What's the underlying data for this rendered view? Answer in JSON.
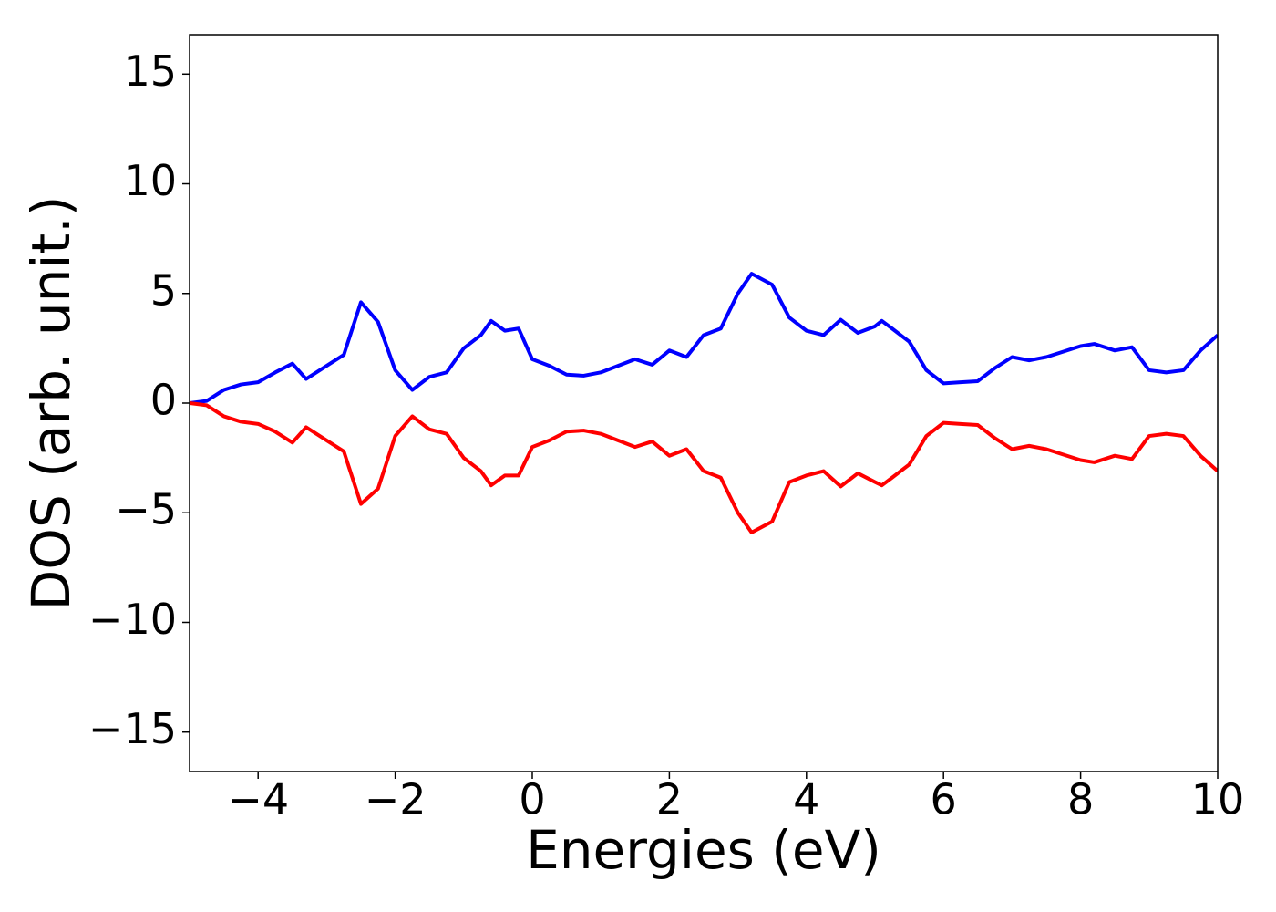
{
  "chart_data": {
    "type": "line",
    "xlabel": "Energies (eV)",
    "ylabel": "DOS (arb. unit.)",
    "x": [
      -5,
      -4.75,
      -4.5,
      -4.25,
      -4,
      -3.75,
      -3.5,
      -3.3,
      -3,
      -2.75,
      -2.5,
      -2.25,
      -2,
      -1.75,
      -1.5,
      -1.25,
      -1,
      -0.75,
      -0.6,
      -0.4,
      -0.2,
      0,
      0.25,
      0.5,
      0.75,
      1,
      1.25,
      1.5,
      1.75,
      2,
      2.25,
      2.5,
      2.75,
      3,
      3.2,
      3.5,
      3.75,
      4,
      4.25,
      4.5,
      4.75,
      5,
      5.1,
      5.25,
      5.5,
      5.75,
      6,
      6.25,
      6.5,
      6.75,
      7,
      7.25,
      7.5,
      7.75,
      8,
      8.2,
      8.5,
      8.75,
      9,
      9.25,
      9.5,
      9.75,
      10
    ],
    "series": [
      {
        "color": "#0000ff",
        "values": [
          0,
          0.1,
          0.6,
          0.85,
          0.95,
          1.4,
          1.8,
          1.1,
          1.7,
          2.2,
          4.6,
          3.7,
          1.5,
          0.6,
          1.2,
          1.4,
          2.5,
          3.1,
          3.75,
          3.3,
          3.4,
          2.0,
          1.7,
          1.3,
          1.25,
          1.4,
          1.7,
          2.0,
          1.75,
          2.4,
          2.1,
          3.1,
          3.4,
          5.0,
          5.9,
          5.4,
          3.9,
          3.3,
          3.1,
          3.8,
          3.2,
          3.5,
          3.75,
          3.4,
          2.8,
          1.5,
          0.9,
          0.95,
          1.0,
          1.6,
          2.1,
          1.95,
          2.1,
          2.35,
          2.6,
          2.7,
          2.4,
          2.55,
          1.5,
          1.4,
          1.5,
          2.4,
          3.1
        ]
      },
      {
        "color": "#ff0000",
        "values": [
          0,
          -0.1,
          -0.6,
          -0.85,
          -0.95,
          -1.3,
          -1.8,
          -1.1,
          -1.7,
          -2.2,
          -4.6,
          -3.9,
          -1.5,
          -0.6,
          -1.2,
          -1.4,
          -2.5,
          -3.1,
          -3.75,
          -3.3,
          -3.3,
          -2.0,
          -1.7,
          -1.3,
          -1.25,
          -1.4,
          -1.7,
          -2.0,
          -1.75,
          -2.4,
          -2.1,
          -3.1,
          -3.4,
          -5.0,
          -5.9,
          -5.4,
          -3.6,
          -3.3,
          -3.1,
          -3.8,
          -3.2,
          -3.6,
          -3.75,
          -3.4,
          -2.8,
          -1.5,
          -0.9,
          -0.95,
          -1.0,
          -1.6,
          -2.1,
          -1.95,
          -2.1,
          -2.35,
          -2.6,
          -2.7,
          -2.4,
          -2.55,
          -1.5,
          -1.4,
          -1.5,
          -2.4,
          -3.1
        ]
      }
    ],
    "xlim": [
      -5,
      10
    ],
    "xticks": [
      {
        "value": -4,
        "label": "−4"
      },
      {
        "value": -2,
        "label": "−2"
      },
      0,
      2,
      4,
      6,
      8,
      10
    ],
    "ylim": [
      -16.8,
      16.8
    ],
    "yticks": [
      {
        "value": -15,
        "label": "−15"
      },
      {
        "value": -10,
        "label": "−10"
      },
      {
        "value": -5,
        "label": "−5"
      },
      0,
      5,
      10,
      15
    ],
    "grid": false
  }
}
